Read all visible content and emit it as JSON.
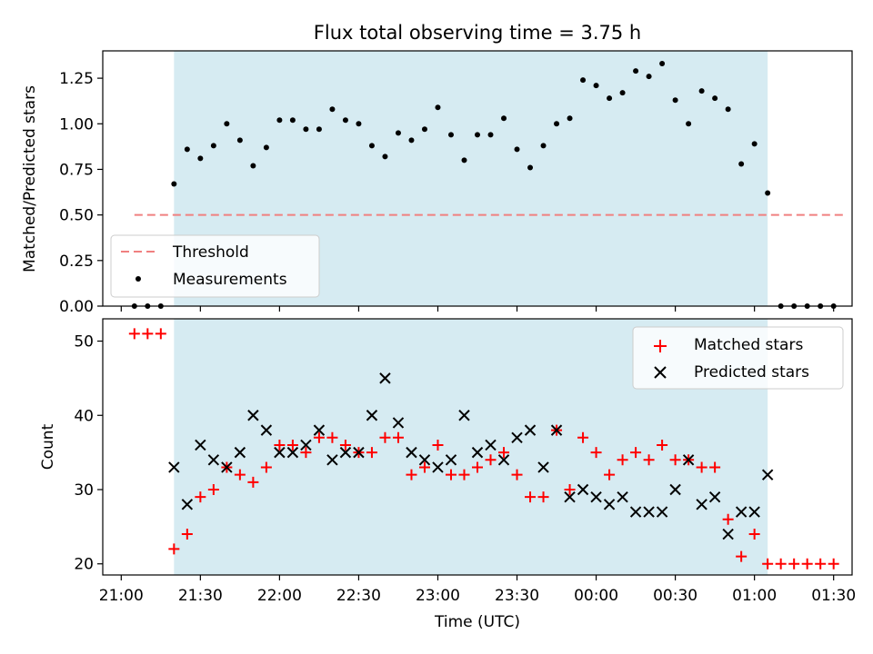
{
  "chart_data": [
    {
      "type": "scatter",
      "title": "Flux total observing time = 3.75 h",
      "xlabel": "",
      "ylabel": "Matched/Predicted stars",
      "ylim": [
        0,
        1.4
      ],
      "yticks": [
        "0.00",
        "0.25",
        "0.50",
        "0.75",
        "1.00",
        "1.25"
      ],
      "x_range": [
        "20:53",
        "01:37"
      ],
      "observing_window": [
        "21:20",
        "01:05"
      ],
      "legend": {
        "placement": "lower-left",
        "entries": [
          "Threshold",
          "Measurements"
        ]
      },
      "threshold": {
        "name": "Threshold",
        "value": 0.5,
        "x_start": "21:05",
        "x_end": "01:35",
        "color": "#f08080"
      },
      "series": [
        {
          "name": "Measurements",
          "color": "#000000",
          "x": [
            "21:05",
            "21:10",
            "21:15",
            "21:20",
            "21:25",
            "21:30",
            "21:35",
            "21:40",
            "21:45",
            "21:50",
            "21:55",
            "22:00",
            "22:05",
            "22:10",
            "22:15",
            "22:20",
            "22:25",
            "22:30",
            "22:35",
            "22:40",
            "22:45",
            "22:50",
            "22:55",
            "23:00",
            "23:05",
            "23:10",
            "23:15",
            "23:20",
            "23:25",
            "23:30",
            "23:35",
            "23:40",
            "23:45",
            "23:50",
            "23:55",
            "00:00",
            "00:05",
            "00:10",
            "00:15",
            "00:20",
            "00:25",
            "00:30",
            "00:35",
            "00:40",
            "00:45",
            "00:50",
            "00:55",
            "01:00",
            "01:05",
            "01:10",
            "01:15",
            "01:20",
            "01:25",
            "01:30"
          ],
          "y": [
            0,
            0,
            0,
            0.67,
            0.86,
            0.81,
            0.88,
            1.0,
            0.91,
            0.77,
            0.87,
            1.02,
            1.02,
            0.97,
            0.97,
            1.08,
            1.02,
            1.0,
            0.88,
            0.82,
            0.95,
            0.91,
            0.97,
            1.09,
            0.94,
            0.8,
            0.94,
            0.94,
            1.03,
            0.86,
            0.76,
            0.88,
            1.0,
            1.03,
            1.24,
            1.21,
            1.14,
            1.17,
            1.29,
            1.26,
            1.33,
            1.13,
            1.0,
            1.18,
            1.14,
            1.08,
            0.78,
            0.89,
            0.62,
            0,
            0,
            0,
            0,
            0
          ]
        }
      ]
    },
    {
      "type": "scatter",
      "title": "",
      "xlabel": "Time (UTC)",
      "ylabel": "Count",
      "ylim": [
        18.5,
        53
      ],
      "yticks": [
        "20",
        "30",
        "40",
        "50"
      ],
      "x_ticks": [
        "21:00",
        "21:30",
        "22:00",
        "22:30",
        "23:00",
        "23:30",
        "00:00",
        "00:30",
        "01:00",
        "01:30"
      ],
      "x_range": [
        "20:53",
        "01:37"
      ],
      "observing_window": [
        "21:20",
        "01:05"
      ],
      "legend": {
        "placement": "top-right",
        "entries": [
          "Matched stars",
          "Predicted stars"
        ]
      },
      "series": [
        {
          "name": "Matched stars",
          "color": "#ff0000",
          "marker": "+",
          "x": [
            "21:05",
            "21:10",
            "21:15",
            "21:20",
            "21:25",
            "21:30",
            "21:35",
            "21:40",
            "21:45",
            "21:50",
            "21:55",
            "22:00",
            "22:05",
            "22:10",
            "22:15",
            "22:20",
            "22:25",
            "22:30",
            "22:35",
            "22:40",
            "22:45",
            "22:50",
            "22:55",
            "23:00",
            "23:05",
            "23:10",
            "23:15",
            "23:20",
            "23:25",
            "23:30",
            "23:35",
            "23:40",
            "23:45",
            "23:50",
            "23:55",
            "00:00",
            "00:05",
            "00:10",
            "00:15",
            "00:20",
            "00:25",
            "00:30",
            "00:35",
            "00:40",
            "00:45",
            "00:50",
            "00:55",
            "01:00",
            "01:05",
            "01:10",
            "01:15",
            "01:20",
            "01:25",
            "01:30"
          ],
          "y": [
            51,
            51,
            51,
            22,
            24,
            29,
            30,
            33,
            32,
            31,
            33,
            36,
            36,
            35,
            37,
            37,
            36,
            35,
            35,
            37,
            37,
            32,
            33,
            36,
            32,
            32,
            33,
            34,
            35,
            32,
            29,
            29,
            38,
            30,
            37,
            35,
            32,
            34,
            35,
            34,
            36,
            34,
            34,
            33,
            33,
            26,
            21,
            24,
            20,
            20,
            20,
            20,
            20,
            20
          ]
        },
        {
          "name": "Predicted stars",
          "color": "#000000",
          "marker": "x",
          "x": [
            "21:20",
            "21:25",
            "21:30",
            "21:35",
            "21:40",
            "21:45",
            "21:50",
            "21:55",
            "22:00",
            "22:05",
            "22:10",
            "22:15",
            "22:20",
            "22:25",
            "22:30",
            "22:35",
            "22:40",
            "22:45",
            "22:50",
            "22:55",
            "23:00",
            "23:05",
            "23:10",
            "23:15",
            "23:20",
            "23:25",
            "23:30",
            "23:35",
            "23:40",
            "23:45",
            "23:50",
            "23:55",
            "00:00",
            "00:05",
            "00:10",
            "00:15",
            "00:20",
            "00:25",
            "00:30",
            "00:35",
            "00:40",
            "00:45",
            "00:50",
            "00:55",
            "01:00",
            "01:05"
          ],
          "y": [
            33,
            28,
            36,
            34,
            33,
            35,
            40,
            38,
            35,
            35,
            36,
            38,
            34,
            35,
            35,
            40,
            45,
            39,
            35,
            34,
            33,
            34,
            40,
            35,
            36,
            34,
            37,
            38,
            33,
            38,
            29,
            30,
            29,
            28,
            29,
            27,
            27,
            27,
            30,
            34,
            28,
            29,
            24,
            27,
            27,
            32
          ]
        }
      ]
    }
  ]
}
